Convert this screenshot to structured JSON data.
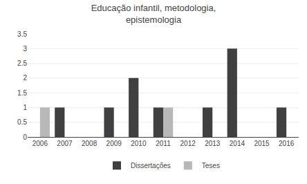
{
  "chart_data": {
    "type": "bar",
    "title": "Educação infantil, metodologia,\nepistemologia",
    "categories": [
      "2006",
      "2007",
      "2008",
      "2009",
      "2010",
      "2011",
      "2012",
      "2013",
      "2014",
      "2015",
      "2016"
    ],
    "series": [
      {
        "name": "Dissertações",
        "color": "#404040",
        "values": [
          0,
          1,
          0,
          1,
          2,
          1,
          0,
          1,
          3,
          0,
          1
        ]
      },
      {
        "name": "Teses",
        "color": "#b8b8b8",
        "values": [
          1,
          0,
          0,
          0,
          0,
          1,
          0,
          0,
          0,
          0,
          0
        ]
      }
    ],
    "ylim": [
      0,
      3.5
    ],
    "yticks": [
      0,
      0.5,
      1,
      1.5,
      2,
      2.5,
      3,
      3.5
    ],
    "grid": true,
    "legend": "bottom"
  }
}
